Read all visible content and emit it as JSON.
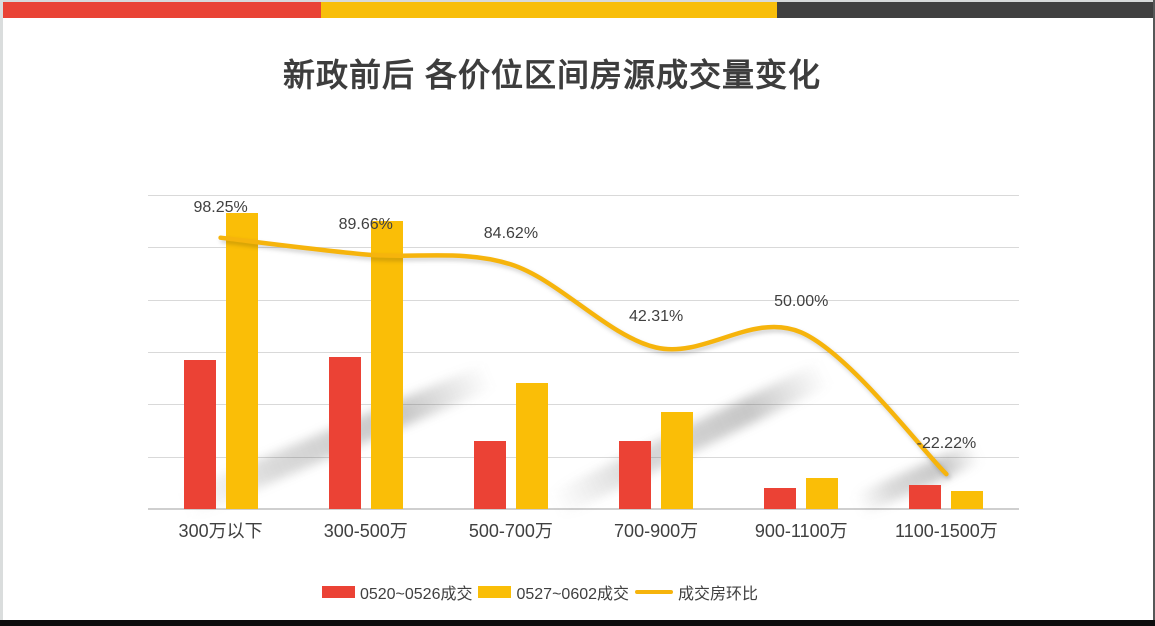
{
  "slide": {
    "title": "新政前后 各价位区间房源成交量变化"
  },
  "palette": {
    "red": "#EB4235",
    "yellow": "#FABE07",
    "line_yellow": "#F6B40C",
    "text_dark": "#404040",
    "title_dark": "#3D3D3D",
    "gridline": "#D9D9D9",
    "axis_line": "#CFCFCF",
    "header_red": "#E94335",
    "header_yellow": "#F8BE0A",
    "header_dark": "#404040",
    "footer_black": "#0D0D0D"
  },
  "chart_data": {
    "type": "bar",
    "subtype": "combo-bar-line",
    "title": "新政前后 各价位区间房源成交量变化",
    "categories": [
      "300万以下",
      "300-500万",
      "500-700万",
      "700-900万",
      "900-1100万",
      "1100-1500万"
    ],
    "series": [
      {
        "name": "0520~0526成交",
        "type": "bar",
        "color_key": "red",
        "values": [
          57,
          58,
          26,
          26,
          8,
          9
        ]
      },
      {
        "name": "0527~0602成交",
        "type": "bar",
        "color_key": "yellow",
        "values": [
          113,
          110,
          48,
          37,
          12,
          7
        ]
      },
      {
        "name": "成交房环比",
        "type": "line",
        "color_key": "line_yellow",
        "values": [
          98.25,
          89.66,
          84.62,
          42.31,
          50.0,
          -22.22
        ],
        "labels": [
          "98.25%",
          "89.66%",
          "84.62%",
          "42.31%",
          "50.00%",
          "-22.22%"
        ]
      }
    ],
    "primary_axis": {
      "min": 0,
      "max": 120,
      "major_unit": 20,
      "labels_visible": false
    },
    "secondary_axis": {
      "min": -40,
      "max": 120,
      "labels_visible": false
    },
    "grid": true,
    "legend_position": "bottom"
  }
}
